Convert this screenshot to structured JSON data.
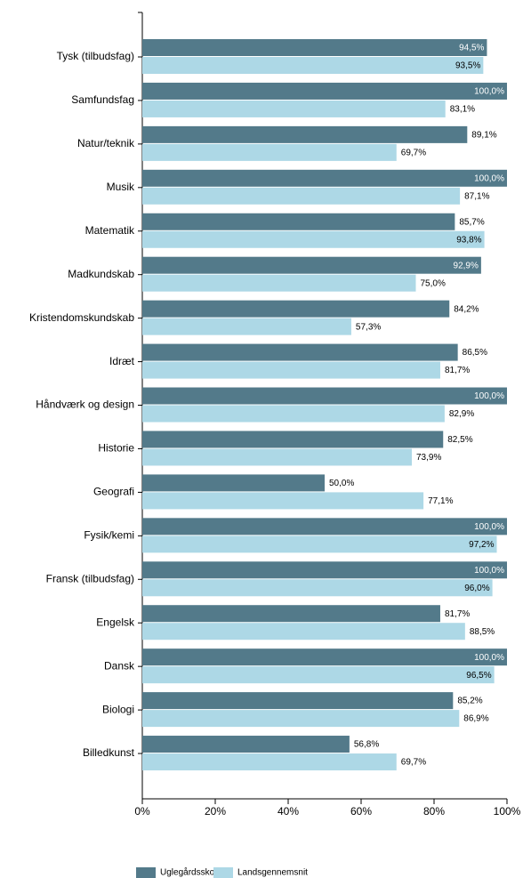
{
  "chart_data": {
    "type": "bar",
    "orientation": "horizontal",
    "categories": [
      "Tysk (tilbudsfag)",
      "Samfundsfag",
      "Natur/teknik",
      "Musik",
      "Matematik",
      "Madkundskab",
      "Kristendomskundskab",
      "Idræt",
      "Håndværk og design",
      "Historie",
      "Geografi",
      "Fysik/kemi",
      "Fransk (tilbudsfag)",
      "Engelsk",
      "Dansk",
      "Biologi",
      "Billedkunst"
    ],
    "series": [
      {
        "name": "Uglegårdsskolen",
        "color": "#537a8a",
        "values": [
          94.5,
          100,
          89.1,
          100,
          85.7,
          92.9,
          84.2,
          86.5,
          100,
          82.5,
          50,
          100,
          100,
          81.7,
          100,
          85.2,
          56.8
        ],
        "value_labels": [
          "94,5%",
          "100,0%",
          "89,1%",
          "100,0%",
          "85,7%",
          "92,9%",
          "84,2%",
          "86,5%",
          "100,0%",
          "82,5%",
          "50,0%",
          "100,0%",
          "100,0%",
          "81,7%",
          "100,0%",
          "85,2%",
          "56,8%"
        ]
      },
      {
        "name": "Landsgennemsnit",
        "color": "#add8e6",
        "values": [
          93.5,
          83.1,
          69.7,
          87.1,
          93.8,
          75.0,
          57.3,
          81.7,
          82.9,
          73.9,
          77.1,
          97.2,
          96.0,
          88.5,
          96.5,
          86.9,
          69.7
        ],
        "value_labels": [
          "93,5%",
          "83,1%",
          "69,7%",
          "87,1%",
          "93,8%",
          "75,0%",
          "57,3%",
          "81,7%",
          "82,9%",
          "73,9%",
          "77,1%",
          "97,2%",
          "96,0%",
          "88,5%",
          "96,5%",
          "86,9%",
          "69,7%"
        ]
      }
    ],
    "xlim": [
      0,
      100
    ],
    "xticks": [
      {
        "value": 0,
        "label": "0%"
      },
      {
        "value": 20,
        "label": "20%"
      },
      {
        "value": 40,
        "label": "40%"
      },
      {
        "value": 60,
        "label": "60%"
      },
      {
        "value": 80,
        "label": "80%"
      },
      {
        "value": 100,
        "label": "100%"
      }
    ],
    "grid": false,
    "legend": "bottom"
  }
}
